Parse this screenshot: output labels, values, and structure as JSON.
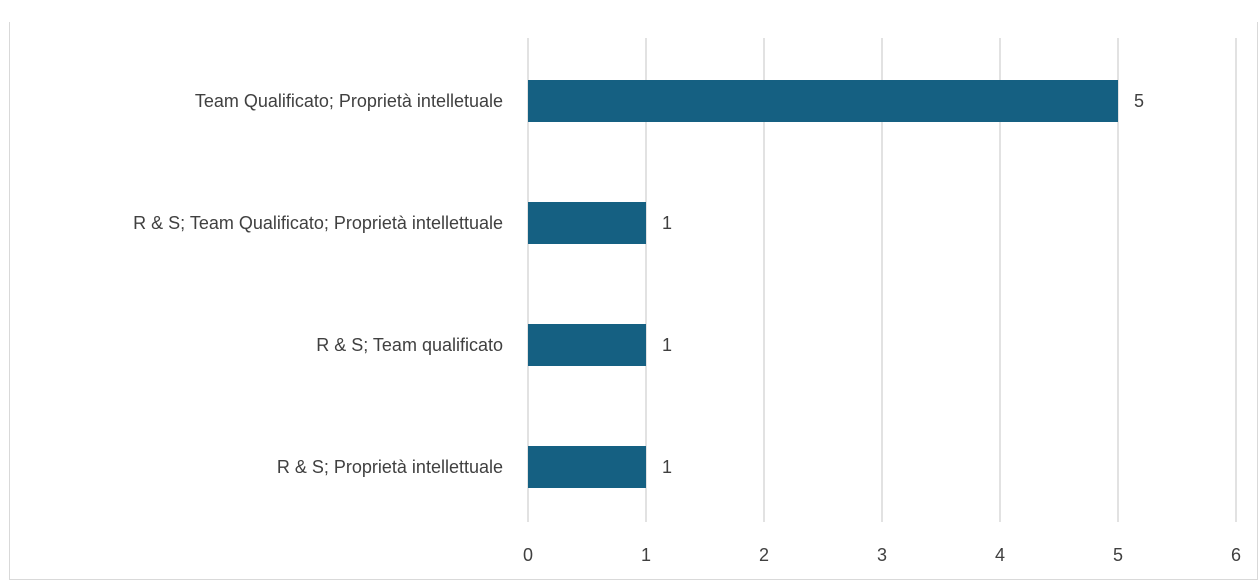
{
  "chart_data": {
    "type": "bar",
    "orientation": "horizontal",
    "title": "",
    "categories": [
      "Team Qualificato; Proprietà intelletuale",
      "R & S; Team Qualificato; Proprietà intellettuale",
      "R & S; Team qualificato",
      "R & S; Proprietà intellettuale"
    ],
    "values": [
      5,
      1,
      1,
      1
    ],
    "xlim": [
      0,
      6
    ],
    "x_ticks": [
      "0",
      "1",
      "2",
      "3",
      "4",
      "5",
      "6"
    ],
    "xlabel": "",
    "ylabel": "",
    "grid": "vertical",
    "legend": "none",
    "bar_color": "#156082",
    "data_labels": [
      "5",
      "1",
      "1",
      "1"
    ]
  }
}
